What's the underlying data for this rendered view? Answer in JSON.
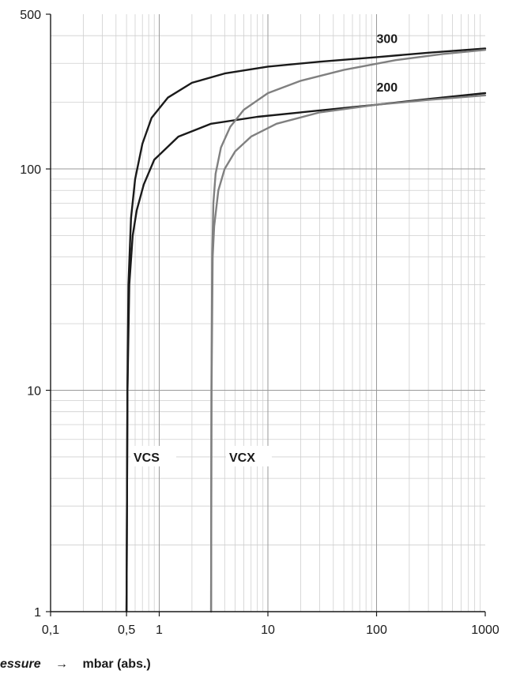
{
  "chart_data": {
    "type": "line",
    "x_scale": "log",
    "y_scale": "log",
    "xlim": [
      0.1,
      1000
    ],
    "ylim": [
      1,
      500
    ],
    "x_ticks": [
      {
        "value": 0.1,
        "label": "0,1"
      },
      {
        "value": 0.5,
        "label": "0,5"
      },
      {
        "value": 1,
        "label": "1"
      },
      {
        "value": 10,
        "label": "10"
      },
      {
        "value": 100,
        "label": "100"
      },
      {
        "value": 1000,
        "label": "1000"
      }
    ],
    "y_ticks": [
      {
        "value": 1,
        "label": "1"
      },
      {
        "value": 10,
        "label": "10"
      },
      {
        "value": 100,
        "label": "100"
      },
      {
        "value": 500,
        "label": "500"
      }
    ],
    "xlabel": {
      "prefix": "essure",
      "arrow": "→",
      "unit": "mbar (abs.)"
    },
    "grid": true,
    "series": [
      {
        "group": "VCS",
        "size": "300",
        "color": "#1a1a1a",
        "points": [
          [
            0.5,
            1
          ],
          [
            0.51,
            10
          ],
          [
            0.52,
            30
          ],
          [
            0.55,
            60
          ],
          [
            0.6,
            90
          ],
          [
            0.7,
            130
          ],
          [
            0.85,
            170
          ],
          [
            1.2,
            210
          ],
          [
            2,
            245
          ],
          [
            4,
            270
          ],
          [
            10,
            290
          ],
          [
            30,
            305
          ],
          [
            100,
            320
          ],
          [
            300,
            335
          ],
          [
            1000,
            350
          ]
        ]
      },
      {
        "group": "VCS",
        "size": "200",
        "color": "#1a1a1a",
        "points": [
          [
            0.5,
            1
          ],
          [
            0.51,
            10
          ],
          [
            0.53,
            30
          ],
          [
            0.57,
            50
          ],
          [
            0.62,
            65
          ],
          [
            0.72,
            85
          ],
          [
            0.9,
            110
          ],
          [
            1.5,
            140
          ],
          [
            3,
            160
          ],
          [
            8,
            172
          ],
          [
            20,
            180
          ],
          [
            100,
            195
          ],
          [
            300,
            207
          ],
          [
            1000,
            220
          ]
        ]
      },
      {
        "group": "VCX",
        "size": "300",
        "color": "#808080",
        "points": [
          [
            3,
            1
          ],
          [
            3.02,
            10
          ],
          [
            3.07,
            40
          ],
          [
            3.15,
            70
          ],
          [
            3.3,
            95
          ],
          [
            3.7,
            125
          ],
          [
            4.5,
            155
          ],
          [
            6,
            185
          ],
          [
            10,
            220
          ],
          [
            20,
            250
          ],
          [
            50,
            280
          ],
          [
            150,
            310
          ],
          [
            400,
            330
          ],
          [
            1000,
            345
          ]
        ]
      },
      {
        "group": "VCX",
        "size": "200",
        "color": "#808080",
        "points": [
          [
            3,
            1
          ],
          [
            3.03,
            10
          ],
          [
            3.1,
            40
          ],
          [
            3.2,
            55
          ],
          [
            3.5,
            80
          ],
          [
            4,
            100
          ],
          [
            5,
            120
          ],
          [
            7,
            140
          ],
          [
            12,
            160
          ],
          [
            30,
            180
          ],
          [
            100,
            195
          ],
          [
            300,
            205
          ],
          [
            1000,
            215
          ]
        ]
      }
    ],
    "annotations": [
      {
        "text": "300",
        "x": 100,
        "y": 390
      },
      {
        "text": "200",
        "x": 100,
        "y": 235
      },
      {
        "text": "VCS",
        "x": 0.58,
        "y": 5
      },
      {
        "text": "VCX",
        "x": 4.4,
        "y": 5
      }
    ],
    "label_boxes": [
      {
        "text": "VCS",
        "x": 0.58,
        "y": 5
      },
      {
        "text": "VCX",
        "x": 4.4,
        "y": 5
      }
    ]
  }
}
